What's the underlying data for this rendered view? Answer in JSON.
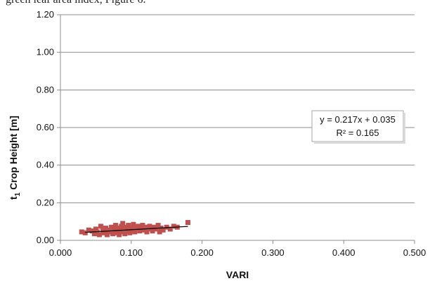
{
  "caption_fragment": "green leaf area index, Figure 6.",
  "chart_data": {
    "type": "scatter",
    "xlabel": "VARI",
    "ylabel_prefix": "t",
    "ylabel_sub": "1",
    "ylabel_rest": " Crop Height [m]",
    "xlim": [
      0,
      0.5
    ],
    "ylim": [
      0,
      1.2
    ],
    "x_ticks": [
      "0.000",
      "0.100",
      "0.200",
      "0.300",
      "0.400",
      "0.500"
    ],
    "y_ticks": [
      "0.00",
      "0.20",
      "0.40",
      "0.60",
      "0.80",
      "1.00",
      "1.20"
    ],
    "grid": "horizontal",
    "marker_color": "#c0504d",
    "trendline_color": "#000000",
    "trendline": {
      "slope": 0.217,
      "intercept": 0.035,
      "x_start": 0.035,
      "x_end": 0.18
    },
    "annotation_line1": "y = 0.217x + 0.035",
    "annotation_line2": "R² = 0.165",
    "points": [
      [
        0.03,
        0.045
      ],
      [
        0.035,
        0.04
      ],
      [
        0.04,
        0.055
      ],
      [
        0.045,
        0.05
      ],
      [
        0.048,
        0.035
      ],
      [
        0.05,
        0.06
      ],
      [
        0.052,
        0.045
      ],
      [
        0.055,
        0.03
      ],
      [
        0.057,
        0.075
      ],
      [
        0.06,
        0.05
      ],
      [
        0.062,
        0.04
      ],
      [
        0.064,
        0.065
      ],
      [
        0.066,
        0.03
      ],
      [
        0.068,
        0.055
      ],
      [
        0.07,
        0.045
      ],
      [
        0.072,
        0.07
      ],
      [
        0.074,
        0.035
      ],
      [
        0.075,
        0.06
      ],
      [
        0.077,
        0.05
      ],
      [
        0.078,
        0.08
      ],
      [
        0.08,
        0.04
      ],
      [
        0.081,
        0.065
      ],
      [
        0.083,
        0.03
      ],
      [
        0.084,
        0.055
      ],
      [
        0.086,
        0.075
      ],
      [
        0.087,
        0.045
      ],
      [
        0.088,
        0.09
      ],
      [
        0.09,
        0.06
      ],
      [
        0.091,
        0.035
      ],
      [
        0.093,
        0.07
      ],
      [
        0.094,
        0.05
      ],
      [
        0.096,
        0.08
      ],
      [
        0.098,
        0.04
      ],
      [
        0.1,
        0.065
      ],
      [
        0.101,
        0.055
      ],
      [
        0.103,
        0.085
      ],
      [
        0.105,
        0.045
      ],
      [
        0.106,
        0.07
      ],
      [
        0.108,
        0.06
      ],
      [
        0.11,
        0.075
      ],
      [
        0.112,
        0.05
      ],
      [
        0.114,
        0.065
      ],
      [
        0.116,
        0.08
      ],
      [
        0.118,
        0.055
      ],
      [
        0.12,
        0.07
      ],
      [
        0.122,
        0.045
      ],
      [
        0.124,
        0.06
      ],
      [
        0.126,
        0.075
      ],
      [
        0.128,
        0.065
      ],
      [
        0.13,
        0.05
      ],
      [
        0.132,
        0.07
      ],
      [
        0.135,
        0.06
      ],
      [
        0.138,
        0.08
      ],
      [
        0.14,
        0.045
      ],
      [
        0.142,
        0.065
      ],
      [
        0.145,
        0.055
      ],
      [
        0.15,
        0.07
      ],
      [
        0.155,
        0.06
      ],
      [
        0.16,
        0.075
      ],
      [
        0.165,
        0.07
      ],
      [
        0.18,
        0.095
      ]
    ]
  }
}
